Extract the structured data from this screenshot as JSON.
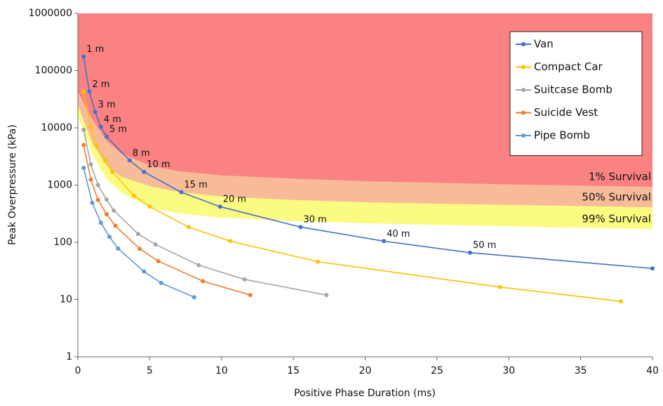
{
  "chart_data": {
    "type": "line",
    "x_label": "Positive Phase Duration (ms)",
    "y_label": "Peak Overpressure (kPa)",
    "xlim": [
      0,
      40
    ],
    "xticks": [
      0,
      5,
      10,
      15,
      20,
      25,
      30,
      35,
      40
    ],
    "ylim": [
      1,
      1000000
    ],
    "yticks": [
      1,
      10,
      100,
      1000,
      10000,
      100000,
      1000000
    ],
    "y_log": true,
    "grid": false,
    "legend": "top-right",
    "regions": [
      {
        "name": "99% Survival",
        "color": "#fbfb82",
        "x": [
          0,
          1,
          2,
          3,
          5,
          7,
          10,
          15,
          20,
          30,
          40
        ],
        "values": [
          16000,
          3500,
          1270,
          750,
          410,
          320,
          270,
          235,
          215,
          190,
          170
        ]
      },
      {
        "name": "50% Survival",
        "color": "#f8bb9a",
        "x": [
          0,
          1,
          2,
          3,
          5,
          7,
          10,
          15,
          20,
          30,
          40
        ],
        "values": [
          25000,
          5500,
          2200,
          1400,
          960,
          760,
          630,
          550,
          500,
          450,
          410
        ]
      },
      {
        "name": "1% Survival",
        "color": "#fa8282",
        "x": [
          0,
          1,
          2,
          3,
          5,
          7,
          10,
          15,
          20,
          30,
          40
        ],
        "values": [
          43000,
          14000,
          6000,
          3600,
          2200,
          1750,
          1480,
          1300,
          1170,
          1030,
          930
        ]
      }
    ],
    "series": [
      {
        "name": "Van",
        "color": "#4472c4",
        "x": [
          0.4,
          0.8,
          1.2,
          1.6,
          2.0,
          3.6,
          4.6,
          7.2,
          9.9,
          15.5,
          21.3,
          27.3,
          40
        ],
        "values": [
          175000,
          43000,
          19000,
          10500,
          7000,
          2700,
          1700,
          750,
          420,
          185,
          105,
          66,
          35
        ],
        "point_labels": [
          "1 m",
          "2 m",
          "3 m",
          "4 m",
          "5 m",
          "8 m",
          "10 m",
          "15 m",
          "20 m",
          "30 m",
          "40 m",
          "50 m",
          null
        ]
      },
      {
        "name": "Compact Car",
        "color": "#ffc000",
        "x": [
          0.4,
          0.9,
          1.3,
          1.9,
          2.4,
          3.9,
          5.0,
          7.7,
          10.6,
          16.7,
          29.4,
          37.8
        ],
        "values": [
          43000,
          10500,
          4800,
          2700,
          1700,
          650,
          420,
          185,
          105,
          46,
          16.5,
          9.3
        ]
      },
      {
        "name": "Suitcase Bomb",
        "color": "#a5a5a5",
        "x": [
          0.4,
          0.9,
          1.4,
          2.0,
          2.5,
          4.2,
          5.4,
          8.4,
          11.6,
          17.3
        ],
        "values": [
          9300,
          2300,
          1000,
          560,
          360,
          140,
          92,
          40,
          22.5,
          12
        ]
      },
      {
        "name": "Suicide Vest",
        "color": "#ed7d31",
        "x": [
          0.4,
          0.9,
          1.4,
          2.0,
          2.6,
          4.3,
          5.6,
          8.7,
          12.0
        ],
        "values": [
          5000,
          1250,
          550,
          310,
          195,
          77,
          47,
          21,
          12
        ]
      },
      {
        "name": "Pipe Bomb",
        "color": "#5b9bd5",
        "x": [
          0.4,
          1.0,
          1.6,
          2.2,
          2.8,
          4.6,
          5.8,
          8.1
        ],
        "values": [
          2000,
          490,
          220,
          125,
          78,
          31,
          19.5,
          11
        ]
      }
    ]
  }
}
